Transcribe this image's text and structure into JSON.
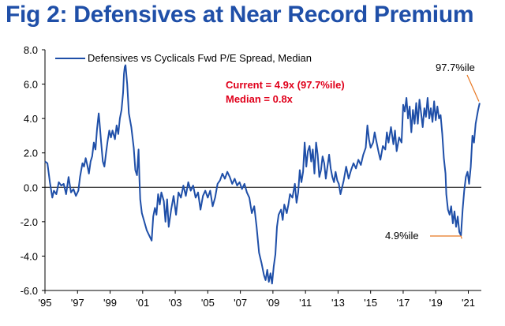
{
  "title": "Fig 2: Defensives at Near Record Premium",
  "colors": {
    "title": "#1f4fa8",
    "series": "#1f4fa8",
    "note": "#e0001b",
    "annotation_arrow": "#e87722"
  },
  "chart_data": {
    "type": "line",
    "ylim": [
      -6.0,
      8.0
    ],
    "y_ticks": [
      8.0,
      6.0,
      4.0,
      2.0,
      0.0,
      -2.0,
      -4.0,
      -6.0
    ],
    "y_tick_labels": [
      "8.0",
      "6.0",
      "4.0",
      "2.0",
      "0.0",
      "-2.0",
      "-4.0",
      "-6.0"
    ],
    "xlim": [
      1995,
      2021.8
    ],
    "x_ticks": [
      1995,
      1997,
      1999,
      2001,
      2003,
      2005,
      2007,
      2009,
      2011,
      2013,
      2015,
      2017,
      2019,
      2021
    ],
    "x_tick_labels": [
      "'95",
      "'97",
      "'99",
      "'01",
      "'03",
      "'05",
      "'07",
      "'09",
      "'11",
      "'13",
      "'15",
      "'17",
      "'19",
      "'21"
    ],
    "legend": "Defensives vs Cyclicals Fwd P/E Spread, Median",
    "notes": [
      "Current = 4.9x (97.7%ile)",
      "Median = 0.8x"
    ],
    "annotations": [
      {
        "text": "97.7%ile",
        "x": 2021.7,
        "y": 4.9
      },
      {
        "text": "4.9%ile",
        "x": 2020.6,
        "y": -2.9
      }
    ],
    "series": [
      {
        "name": "Defensives vs Cyclicals Fwd P/E Spread, Median",
        "points": [
          [
            1995.0,
            1.5
          ],
          [
            1995.15,
            1.4
          ],
          [
            1995.3,
            0.3
          ],
          [
            1995.45,
            -0.6
          ],
          [
            1995.55,
            -0.2
          ],
          [
            1995.7,
            -0.4
          ],
          [
            1995.85,
            0.3
          ],
          [
            1996.0,
            0.1
          ],
          [
            1996.15,
            0.2
          ],
          [
            1996.3,
            -0.4
          ],
          [
            1996.45,
            0.6
          ],
          [
            1996.6,
            -0.3
          ],
          [
            1996.75,
            -0.1
          ],
          [
            1996.9,
            -0.5
          ],
          [
            1997.05,
            -0.2
          ],
          [
            1997.15,
            0.6
          ],
          [
            1997.3,
            1.4
          ],
          [
            1997.4,
            1.2
          ],
          [
            1997.5,
            1.7
          ],
          [
            1997.6,
            1.3
          ],
          [
            1997.7,
            0.8
          ],
          [
            1997.8,
            1.5
          ],
          [
            1997.9,
            1.8
          ],
          [
            1998.0,
            2.6
          ],
          [
            1998.1,
            2.2
          ],
          [
            1998.2,
            3.4
          ],
          [
            1998.3,
            4.3
          ],
          [
            1998.35,
            3.8
          ],
          [
            1998.45,
            2.6
          ],
          [
            1998.55,
            1.5
          ],
          [
            1998.65,
            1.2
          ],
          [
            1998.75,
            2.0
          ],
          [
            1998.85,
            2.7
          ],
          [
            1998.95,
            3.3
          ],
          [
            1999.05,
            2.9
          ],
          [
            1999.15,
            3.3
          ],
          [
            1999.3,
            2.8
          ],
          [
            1999.4,
            3.6
          ],
          [
            1999.5,
            3.1
          ],
          [
            1999.6,
            4.0
          ],
          [
            1999.7,
            4.5
          ],
          [
            1999.8,
            5.5
          ],
          [
            1999.85,
            6.6
          ],
          [
            1999.9,
            7.0
          ],
          [
            1999.95,
            7.1
          ],
          [
            2000.05,
            6.0
          ],
          [
            2000.15,
            4.3
          ],
          [
            2000.3,
            3.5
          ],
          [
            2000.45,
            2.3
          ],
          [
            2000.55,
            1.0
          ],
          [
            2000.65,
            0.7
          ],
          [
            2000.75,
            2.2
          ],
          [
            2000.8,
            0.5
          ],
          [
            2000.85,
            -0.7
          ],
          [
            2000.95,
            -1.5
          ],
          [
            2001.1,
            -2.0
          ],
          [
            2001.25,
            -2.5
          ],
          [
            2001.4,
            -2.8
          ],
          [
            2001.55,
            -3.1
          ],
          [
            2001.65,
            -1.7
          ],
          [
            2001.75,
            -1.2
          ],
          [
            2001.85,
            -1.6
          ],
          [
            2001.95,
            -0.4
          ],
          [
            2002.05,
            -1.0
          ],
          [
            2002.15,
            -0.3
          ],
          [
            2002.3,
            -0.8
          ],
          [
            2002.4,
            -2.0
          ],
          [
            2002.5,
            -0.7
          ],
          [
            2002.6,
            -2.3
          ],
          [
            2002.75,
            -1.3
          ],
          [
            2002.9,
            -0.5
          ],
          [
            2003.05,
            -1.6
          ],
          [
            2003.2,
            -0.3
          ],
          [
            2003.35,
            -0.6
          ],
          [
            2003.5,
            0.1
          ],
          [
            2003.65,
            -0.5
          ],
          [
            2003.8,
            0.3
          ],
          [
            2003.95,
            -0.2
          ],
          [
            2004.1,
            0.1
          ],
          [
            2004.25,
            -0.6
          ],
          [
            2004.4,
            -0.3
          ],
          [
            2004.55,
            -1.3
          ],
          [
            2004.7,
            -0.5
          ],
          [
            2004.85,
            -0.2
          ],
          [
            2005.0,
            -0.6
          ],
          [
            2005.15,
            -0.2
          ],
          [
            2005.3,
            -1.1
          ],
          [
            2005.45,
            -0.6
          ],
          [
            2005.6,
            0.2
          ],
          [
            2005.75,
            0.4
          ],
          [
            2005.9,
            0.8
          ],
          [
            2006.05,
            0.5
          ],
          [
            2006.2,
            0.9
          ],
          [
            2006.35,
            0.6
          ],
          [
            2006.5,
            0.2
          ],
          [
            2006.65,
            0.5
          ],
          [
            2006.8,
            0.1
          ],
          [
            2006.95,
            0.3
          ],
          [
            2007.1,
            -0.1
          ],
          [
            2007.25,
            0.2
          ],
          [
            2007.4,
            -0.3
          ],
          [
            2007.55,
            -0.6
          ],
          [
            2007.7,
            -1.5
          ],
          [
            2007.85,
            -1.1
          ],
          [
            2008.0,
            -2.3
          ],
          [
            2008.15,
            -3.8
          ],
          [
            2008.3,
            -4.4
          ],
          [
            2008.45,
            -5.1
          ],
          [
            2008.55,
            -5.4
          ],
          [
            2008.65,
            -4.8
          ],
          [
            2008.75,
            -5.5
          ],
          [
            2008.85,
            -5.0
          ],
          [
            2008.95,
            -5.6
          ],
          [
            2009.05,
            -4.6
          ],
          [
            2009.15,
            -3.9
          ],
          [
            2009.25,
            -2.3
          ],
          [
            2009.35,
            -1.6
          ],
          [
            2009.5,
            -1.3
          ],
          [
            2009.6,
            -1.9
          ],
          [
            2009.7,
            -1.0
          ],
          [
            2009.85,
            -1.5
          ],
          [
            2009.95,
            -1.0
          ],
          [
            2010.05,
            -0.4
          ],
          [
            2010.2,
            -0.6
          ],
          [
            2010.35,
            0.2
          ],
          [
            2010.45,
            -0.9
          ],
          [
            2010.55,
            -0.3
          ],
          [
            2010.65,
            1.0
          ],
          [
            2010.75,
            0.3
          ],
          [
            2010.85,
            0.9
          ],
          [
            2010.95,
            2.6
          ],
          [
            2011.05,
            1.2
          ],
          [
            2011.15,
            2.1
          ],
          [
            2011.25,
            2.4
          ],
          [
            2011.35,
            1.5
          ],
          [
            2011.45,
            2.2
          ],
          [
            2011.55,
            0.8
          ],
          [
            2011.65,
            2.6
          ],
          [
            2011.75,
            1.9
          ],
          [
            2011.85,
            0.6
          ],
          [
            2011.95,
            1.0
          ],
          [
            2012.05,
            1.8
          ],
          [
            2012.15,
            1.4
          ],
          [
            2012.25,
            0.5
          ],
          [
            2012.35,
            1.2
          ],
          [
            2012.45,
            1.9
          ],
          [
            2012.55,
            1.1
          ],
          [
            2012.65,
            0.6
          ],
          [
            2012.75,
            0.3
          ],
          [
            2012.85,
            0.9
          ],
          [
            2012.95,
            0.4
          ],
          [
            2013.05,
            0.2
          ],
          [
            2013.15,
            -0.4
          ],
          [
            2013.25,
            0.0
          ],
          [
            2013.35,
            0.4
          ],
          [
            2013.5,
            1.2
          ],
          [
            2013.65,
            0.5
          ],
          [
            2013.8,
            1.0
          ],
          [
            2013.95,
            1.4
          ],
          [
            2014.1,
            1.1
          ],
          [
            2014.25,
            1.6
          ],
          [
            2014.4,
            1.3
          ],
          [
            2014.55,
            1.9
          ],
          [
            2014.7,
            2.3
          ],
          [
            2014.8,
            3.6
          ],
          [
            2014.9,
            2.8
          ],
          [
            2015.0,
            2.3
          ],
          [
            2015.15,
            2.6
          ],
          [
            2015.25,
            3.2
          ],
          [
            2015.35,
            2.7
          ],
          [
            2015.5,
            2.0
          ],
          [
            2015.6,
            1.6
          ],
          [
            2015.75,
            2.4
          ],
          [
            2015.9,
            2.2
          ],
          [
            2016.0,
            3.2
          ],
          [
            2016.1,
            2.6
          ],
          [
            2016.25,
            3.5
          ],
          [
            2016.4,
            2.5
          ],
          [
            2016.5,
            3.3
          ],
          [
            2016.6,
            2.1
          ],
          [
            2016.75,
            2.9
          ],
          [
            2016.9,
            2.6
          ],
          [
            2017.0,
            4.8
          ],
          [
            2017.1,
            4.4
          ],
          [
            2017.2,
            5.2
          ],
          [
            2017.3,
            4.0
          ],
          [
            2017.4,
            4.7
          ],
          [
            2017.5,
            3.2
          ],
          [
            2017.6,
            4.5
          ],
          [
            2017.7,
            3.7
          ],
          [
            2017.8,
            4.9
          ],
          [
            2017.9,
            3.7
          ],
          [
            2018.0,
            5.1
          ],
          [
            2018.1,
            4.3
          ],
          [
            2018.2,
            3.5
          ],
          [
            2018.3,
            4.6
          ],
          [
            2018.4,
            4.1
          ],
          [
            2018.5,
            5.2
          ],
          [
            2018.6,
            4.0
          ],
          [
            2018.7,
            4.6
          ],
          [
            2018.8,
            3.8
          ],
          [
            2018.9,
            5.0
          ],
          [
            2019.0,
            3.9
          ],
          [
            2019.1,
            4.7
          ],
          [
            2019.2,
            4.0
          ],
          [
            2019.3,
            4.2
          ],
          [
            2019.4,
            3.1
          ],
          [
            2019.5,
            1.7
          ],
          [
            2019.6,
            0.8
          ],
          [
            2019.65,
            -0.4
          ],
          [
            2019.75,
            -1.3
          ],
          [
            2019.85,
            -1.6
          ],
          [
            2019.95,
            -1.1
          ],
          [
            2020.05,
            -2.1
          ],
          [
            2020.15,
            -1.4
          ],
          [
            2020.25,
            -2.3
          ],
          [
            2020.35,
            -1.7
          ],
          [
            2020.45,
            -2.6
          ],
          [
            2020.55,
            -2.8
          ],
          [
            2020.65,
            -1.3
          ],
          [
            2020.75,
            -0.2
          ],
          [
            2020.85,
            0.6
          ],
          [
            2020.95,
            0.9
          ],
          [
            2021.05,
            0.2
          ],
          [
            2021.15,
            1.2
          ],
          [
            2021.25,
            3.0
          ],
          [
            2021.35,
            2.6
          ],
          [
            2021.45,
            3.7
          ],
          [
            2021.6,
            4.5
          ],
          [
            2021.7,
            4.9
          ]
        ]
      }
    ]
  }
}
